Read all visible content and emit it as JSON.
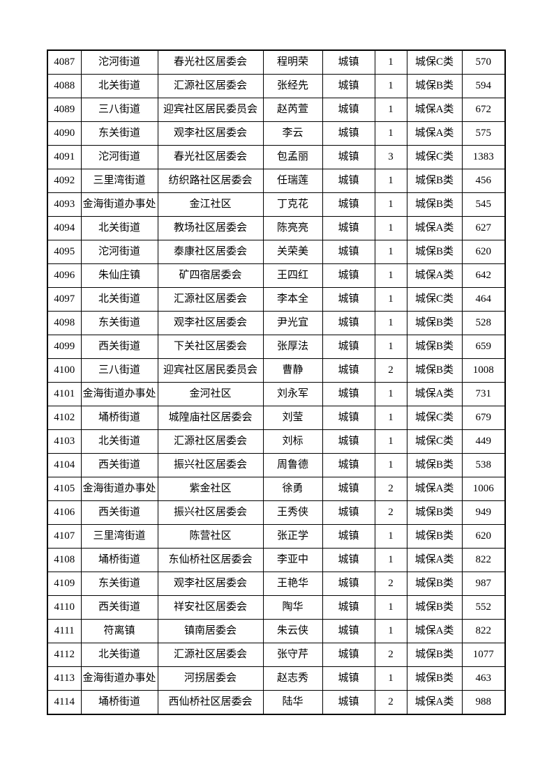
{
  "page": {
    "kind": "printed-table-page",
    "background_color": "#ffffff",
    "text_color": "#000000",
    "border_color": "#000000"
  },
  "table": {
    "columns": [
      {
        "key": "seq",
        "name": "sequence-number",
        "width": 48
      },
      {
        "key": "street",
        "name": "street-office",
        "width": 110
      },
      {
        "key": "committee",
        "name": "community-committee",
        "width": 151
      },
      {
        "key": "name",
        "name": "person-name",
        "width": 85
      },
      {
        "key": "type",
        "name": "household-type",
        "width": 75
      },
      {
        "key": "count",
        "name": "person-count",
        "width": 46
      },
      {
        "key": "category",
        "name": "subsidy-category",
        "width": 79
      },
      {
        "key": "amount",
        "name": "amount",
        "width": 62
      }
    ],
    "rows": [
      [
        "4087",
        "沱河街道",
        "春光社区居委会",
        "程明荣",
        "城镇",
        "1",
        "城保C类",
        "570"
      ],
      [
        "4088",
        "北关街道",
        "汇源社区居委会",
        "张经先",
        "城镇",
        "1",
        "城保B类",
        "594"
      ],
      [
        "4089",
        "三八街道",
        "迎宾社区居民委员会",
        "赵芮萱",
        "城镇",
        "1",
        "城保A类",
        "672"
      ],
      [
        "4090",
        "东关街道",
        "观李社区居委会",
        "李云",
        "城镇",
        "1",
        "城保A类",
        "575"
      ],
      [
        "4091",
        "沱河街道",
        "春光社区居委会",
        "包孟丽",
        "城镇",
        "3",
        "城保C类",
        "1383"
      ],
      [
        "4092",
        "三里湾街道",
        "纺织路社区居委会",
        "任瑞莲",
        "城镇",
        "1",
        "城保B类",
        "456"
      ],
      [
        "4093",
        "金海街道办事处",
        "金江社区",
        "丁克花",
        "城镇",
        "1",
        "城保B类",
        "545"
      ],
      [
        "4094",
        "北关街道",
        "教场社区居委会",
        "陈亮亮",
        "城镇",
        "1",
        "城保A类",
        "627"
      ],
      [
        "4095",
        "沱河街道",
        "泰康社区居委会",
        "关荣美",
        "城镇",
        "1",
        "城保B类",
        "620"
      ],
      [
        "4096",
        "朱仙庄镇",
        "矿四宿居委会",
        "王四红",
        "城镇",
        "1",
        "城保A类",
        "642"
      ],
      [
        "4097",
        "北关街道",
        "汇源社区居委会",
        "李本全",
        "城镇",
        "1",
        "城保C类",
        "464"
      ],
      [
        "4098",
        "东关街道",
        "观李社区居委会",
        "尹光宜",
        "城镇",
        "1",
        "城保B类",
        "528"
      ],
      [
        "4099",
        "西关街道",
        "下关社区居委会",
        "张厚法",
        "城镇",
        "1",
        "城保B类",
        "659"
      ],
      [
        "4100",
        "三八街道",
        "迎宾社区居民委员会",
        "曹静",
        "城镇",
        "2",
        "城保B类",
        "1008"
      ],
      [
        "4101",
        "金海街道办事处",
        "金河社区",
        "刘永军",
        "城镇",
        "1",
        "城保A类",
        "731"
      ],
      [
        "4102",
        "埇桥街道",
        "城隍庙社区居委会",
        "刘莹",
        "城镇",
        "1",
        "城保C类",
        "679"
      ],
      [
        "4103",
        "北关街道",
        "汇源社区居委会",
        "刘标",
        "城镇",
        "1",
        "城保C类",
        "449"
      ],
      [
        "4104",
        "西关街道",
        "振兴社区居委会",
        "周鲁德",
        "城镇",
        "1",
        "城保B类",
        "538"
      ],
      [
        "4105",
        "金海街道办事处",
        "紫金社区",
        "徐勇",
        "城镇",
        "2",
        "城保A类",
        "1006"
      ],
      [
        "4106",
        "西关街道",
        "振兴社区居委会",
        "王秀侠",
        "城镇",
        "2",
        "城保B类",
        "949"
      ],
      [
        "4107",
        "三里湾街道",
        "陈营社区",
        "张正学",
        "城镇",
        "1",
        "城保B类",
        "620"
      ],
      [
        "4108",
        "埇桥街道",
        "东仙桥社区居委会",
        "李亚中",
        "城镇",
        "1",
        "城保A类",
        "822"
      ],
      [
        "4109",
        "东关街道",
        "观李社区居委会",
        "王艳华",
        "城镇",
        "2",
        "城保B类",
        "987"
      ],
      [
        "4110",
        "西关街道",
        "祥安社区居委会",
        "陶华",
        "城镇",
        "1",
        "城保B类",
        "552"
      ],
      [
        "4111",
        "符离镇",
        "镇南居委会",
        "朱云侠",
        "城镇",
        "1",
        "城保A类",
        "822"
      ],
      [
        "4112",
        "北关街道",
        "汇源社区居委会",
        "张守芹",
        "城镇",
        "2",
        "城保B类",
        "1077"
      ],
      [
        "4113",
        "金海街道办事处",
        "河拐居委会",
        "赵志秀",
        "城镇",
        "1",
        "城保B类",
        "463"
      ],
      [
        "4114",
        "埇桥街道",
        "西仙桥社区居委会",
        "陆华",
        "城镇",
        "2",
        "城保A类",
        "988"
      ]
    ]
  }
}
